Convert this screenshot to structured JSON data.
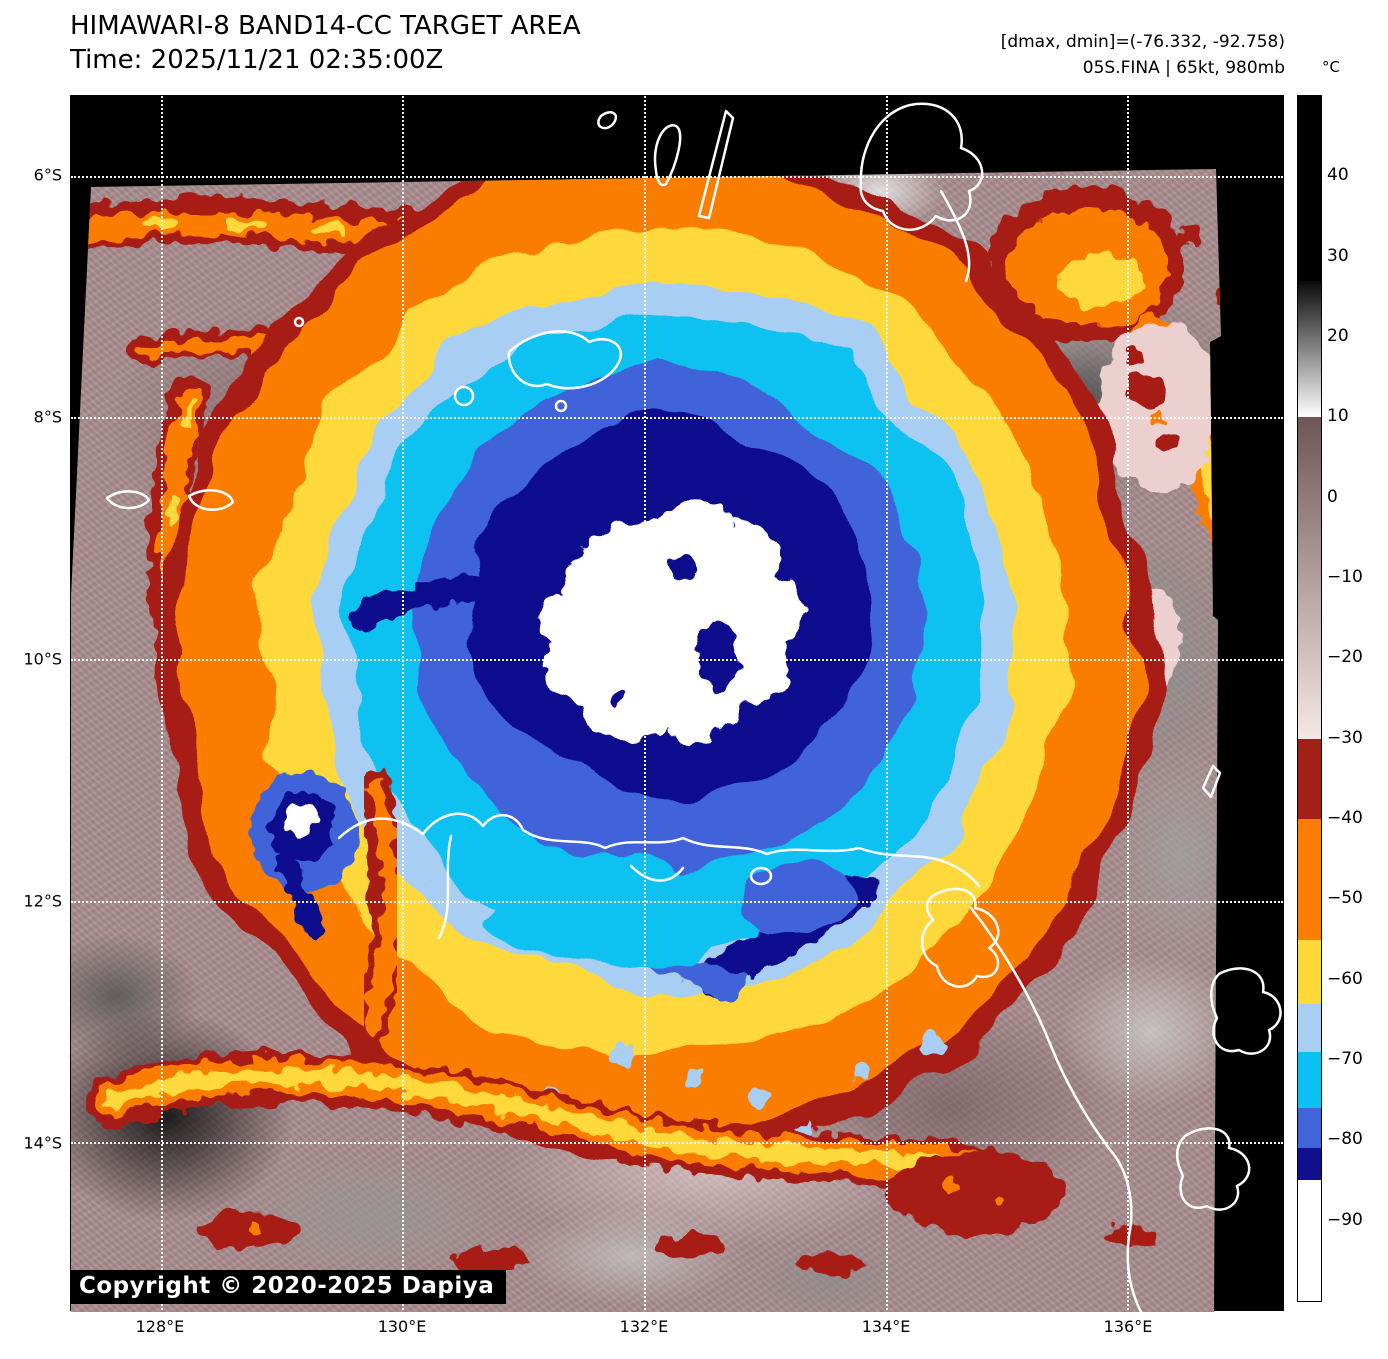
{
  "header": {
    "title": "HIMAWARI-8 BAND14-CC TARGET AREA",
    "time_line": "Time: 2025/11/21 02:35:00Z",
    "annotation_line1": "[dmax, dmin]=(-76.332, -92.758)",
    "annotation_line2": "05S.FINA | 65kt, 980mb"
  },
  "map": {
    "copyright": "Copyright © 2020-2025 Dapiya"
  },
  "axes": {
    "lat_ticks": [
      {
        "label": "6°S",
        "pct": 6.58
      },
      {
        "label": "8°S",
        "pct": 26.48
      },
      {
        "label": "10°S",
        "pct": 46.38
      },
      {
        "label": "12°S",
        "pct": 66.28
      },
      {
        "label": "14°S",
        "pct": 86.18
      }
    ],
    "lon_ticks": [
      {
        "label": "128°E",
        "pct": 7.41
      },
      {
        "label": "130°E",
        "pct": 27.35
      },
      {
        "label": "132°E",
        "pct": 47.28
      },
      {
        "label": "134°E",
        "pct": 67.22
      },
      {
        "label": "136°E",
        "pct": 87.15
      }
    ]
  },
  "colorbar": {
    "unit": "°C",
    "scale_max": 50,
    "scale_min": -100,
    "ticks": [
      {
        "label": "40",
        "value": 40
      },
      {
        "label": "30",
        "value": 30
      },
      {
        "label": "20",
        "value": 20
      },
      {
        "label": "10",
        "value": 10
      },
      {
        "label": "0",
        "value": 0
      },
      {
        "label": "−10",
        "value": -10
      },
      {
        "label": "−20",
        "value": -20
      },
      {
        "label": "−30",
        "value": -30
      },
      {
        "label": "−40",
        "value": -40
      },
      {
        "label": "−50",
        "value": -50
      },
      {
        "label": "−60",
        "value": -60
      },
      {
        "label": "−70",
        "value": -70
      },
      {
        "label": "−80",
        "value": -80
      },
      {
        "label": "−90",
        "value": -90
      }
    ],
    "segments": [
      {
        "from": 50,
        "to": 27,
        "colors": [
          "#000000"
        ]
      },
      {
        "from": 27,
        "to": 10,
        "colors": [
          "#0a0a0a",
          "#ffffff"
        ]
      },
      {
        "from": 10,
        "to": -30,
        "colors": [
          "#6e5658",
          "#f6e6e6"
        ]
      },
      {
        "from": -30,
        "to": -40,
        "colors": [
          "#a32018"
        ]
      },
      {
        "from": -40,
        "to": -55,
        "colors": [
          "#fb7d04"
        ]
      },
      {
        "from": -55,
        "to": -63,
        "colors": [
          "#ffd83a"
        ]
      },
      {
        "from": -63,
        "to": -69,
        "colors": [
          "#a9cef4"
        ]
      },
      {
        "from": -69,
        "to": -76,
        "colors": [
          "#0ac1f1"
        ]
      },
      {
        "from": -76,
        "to": -81,
        "colors": [
          "#4164da"
        ]
      },
      {
        "from": -81,
        "to": -85,
        "colors": [
          "#10108e"
        ]
      },
      {
        "from": -85,
        "to": -100,
        "colors": [
          "#ffffff"
        ]
      }
    ]
  },
  "palette": {
    "deep_convection_white": "#ffffff",
    "navy": "#10108e",
    "royal_blue": "#4164da",
    "cyan": "#0ac1f1",
    "pale_blue": "#a9cef4",
    "gold": "#ffd83a",
    "orange": "#fb7d04",
    "dark_red": "#a81e12",
    "background_mauve": "#ab8f91",
    "coastline": "#ffffff",
    "space_fill": "#000000"
  }
}
